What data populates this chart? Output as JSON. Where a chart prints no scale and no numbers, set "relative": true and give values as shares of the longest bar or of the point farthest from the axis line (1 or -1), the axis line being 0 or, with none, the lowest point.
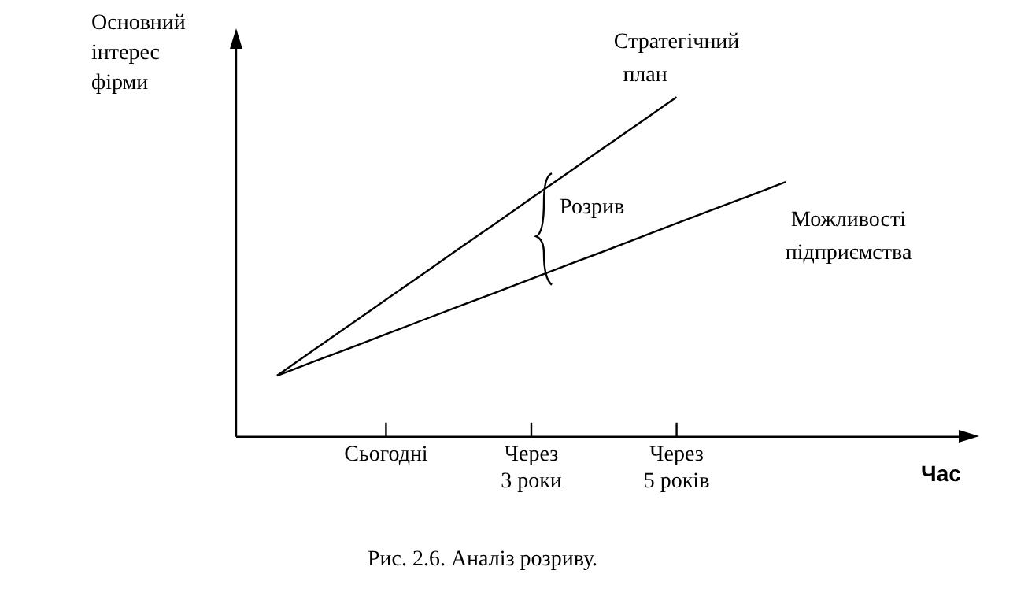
{
  "chart_data": {
    "type": "line",
    "relative": true,
    "ylabel": "Основний інтерес фірми",
    "categories": [
      null,
      null,
      null,
      "Сьогодні",
      null,
      null,
      null,
      "Через 3 роки",
      null,
      null,
      null,
      "Через 5 років",
      null,
      null,
      null
    ],
    "series": [
      {
        "name": "Стратегічний план",
        "color": "#000000",
        "values": [
          0.18,
          0.255,
          0.329,
          0.404,
          0.478,
          0.553,
          0.627,
          0.702,
          0.776,
          0.851,
          0.925,
          1.0,
          null,
          null,
          null
        ]
      },
      {
        "name": "Можливості підприємства",
        "color": "#000000",
        "values": [
          0.18,
          0.221,
          0.261,
          0.302,
          0.343,
          0.384,
          0.424,
          0.465,
          0.506,
          0.546,
          0.587,
          0.628,
          0.669,
          0.709,
          0.75
        ]
      }
    ],
    "annotations": [
      "Розрив",
      "Час",
      "Рис. 2.6. Аналіз розриву."
    ],
    "marker": "none",
    "legend": false,
    "grid": false
  }
}
